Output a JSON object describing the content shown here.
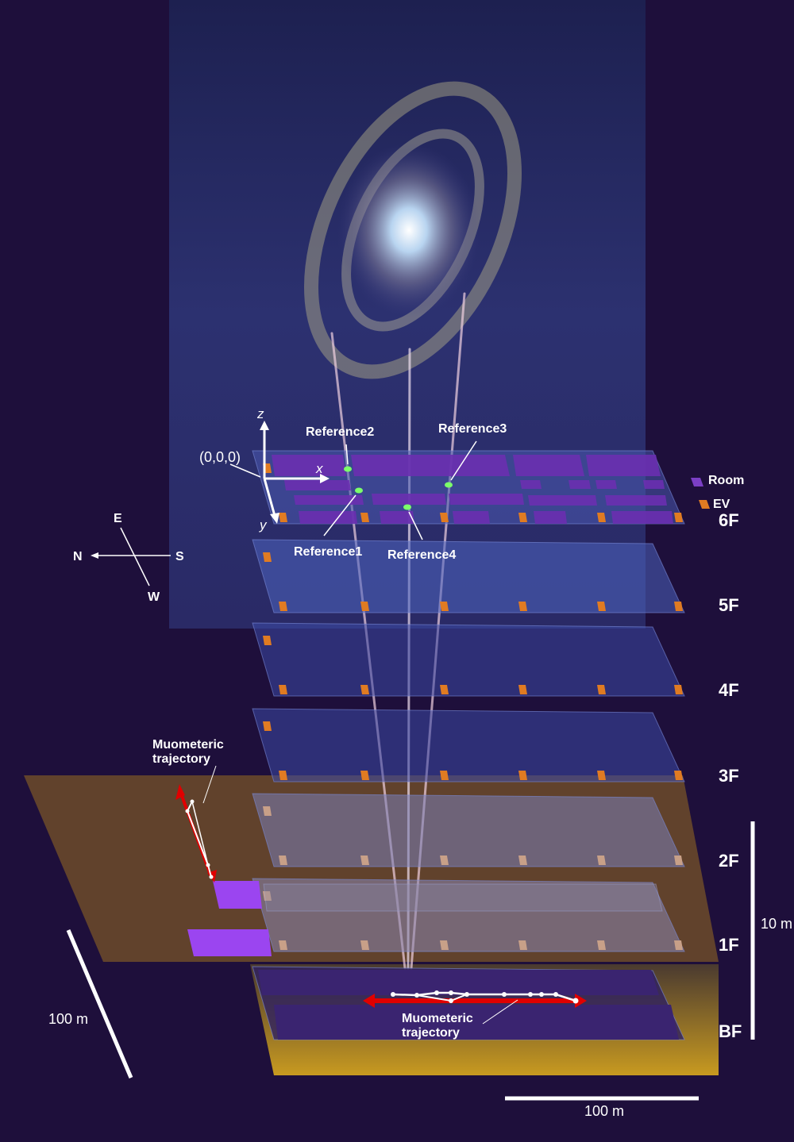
{
  "axes": {
    "origin": "(0,0,0)",
    "x": "x",
    "y": "y",
    "z": "z"
  },
  "references": [
    {
      "label": "Reference1"
    },
    {
      "label": "Reference2"
    },
    {
      "label": "Reference3"
    },
    {
      "label": "Reference4"
    }
  ],
  "legend": [
    {
      "label": "Room",
      "color": "#7b3fc4"
    },
    {
      "label": "EV",
      "color": "#e07b22"
    }
  ],
  "floors": [
    "6F",
    "5F",
    "4F",
    "3F",
    "2F",
    "1F",
    "BF"
  ],
  "compass": {
    "north": "N",
    "south": "S",
    "east": "E",
    "west": "W"
  },
  "trajectory_labels": {
    "upper": [
      "Muometeric",
      "trajectory"
    ],
    "lower": [
      "Muometeric",
      "trajectory"
    ]
  },
  "scale_bars": {
    "vertical": "10 m",
    "diagonal": "100 m",
    "horizontal": "100 m"
  },
  "colors": {
    "background": "#1e0f3b",
    "ground": "#6b4a2a",
    "trajectory_arrow": "#e00000",
    "reference_point": "#7cff6a"
  }
}
